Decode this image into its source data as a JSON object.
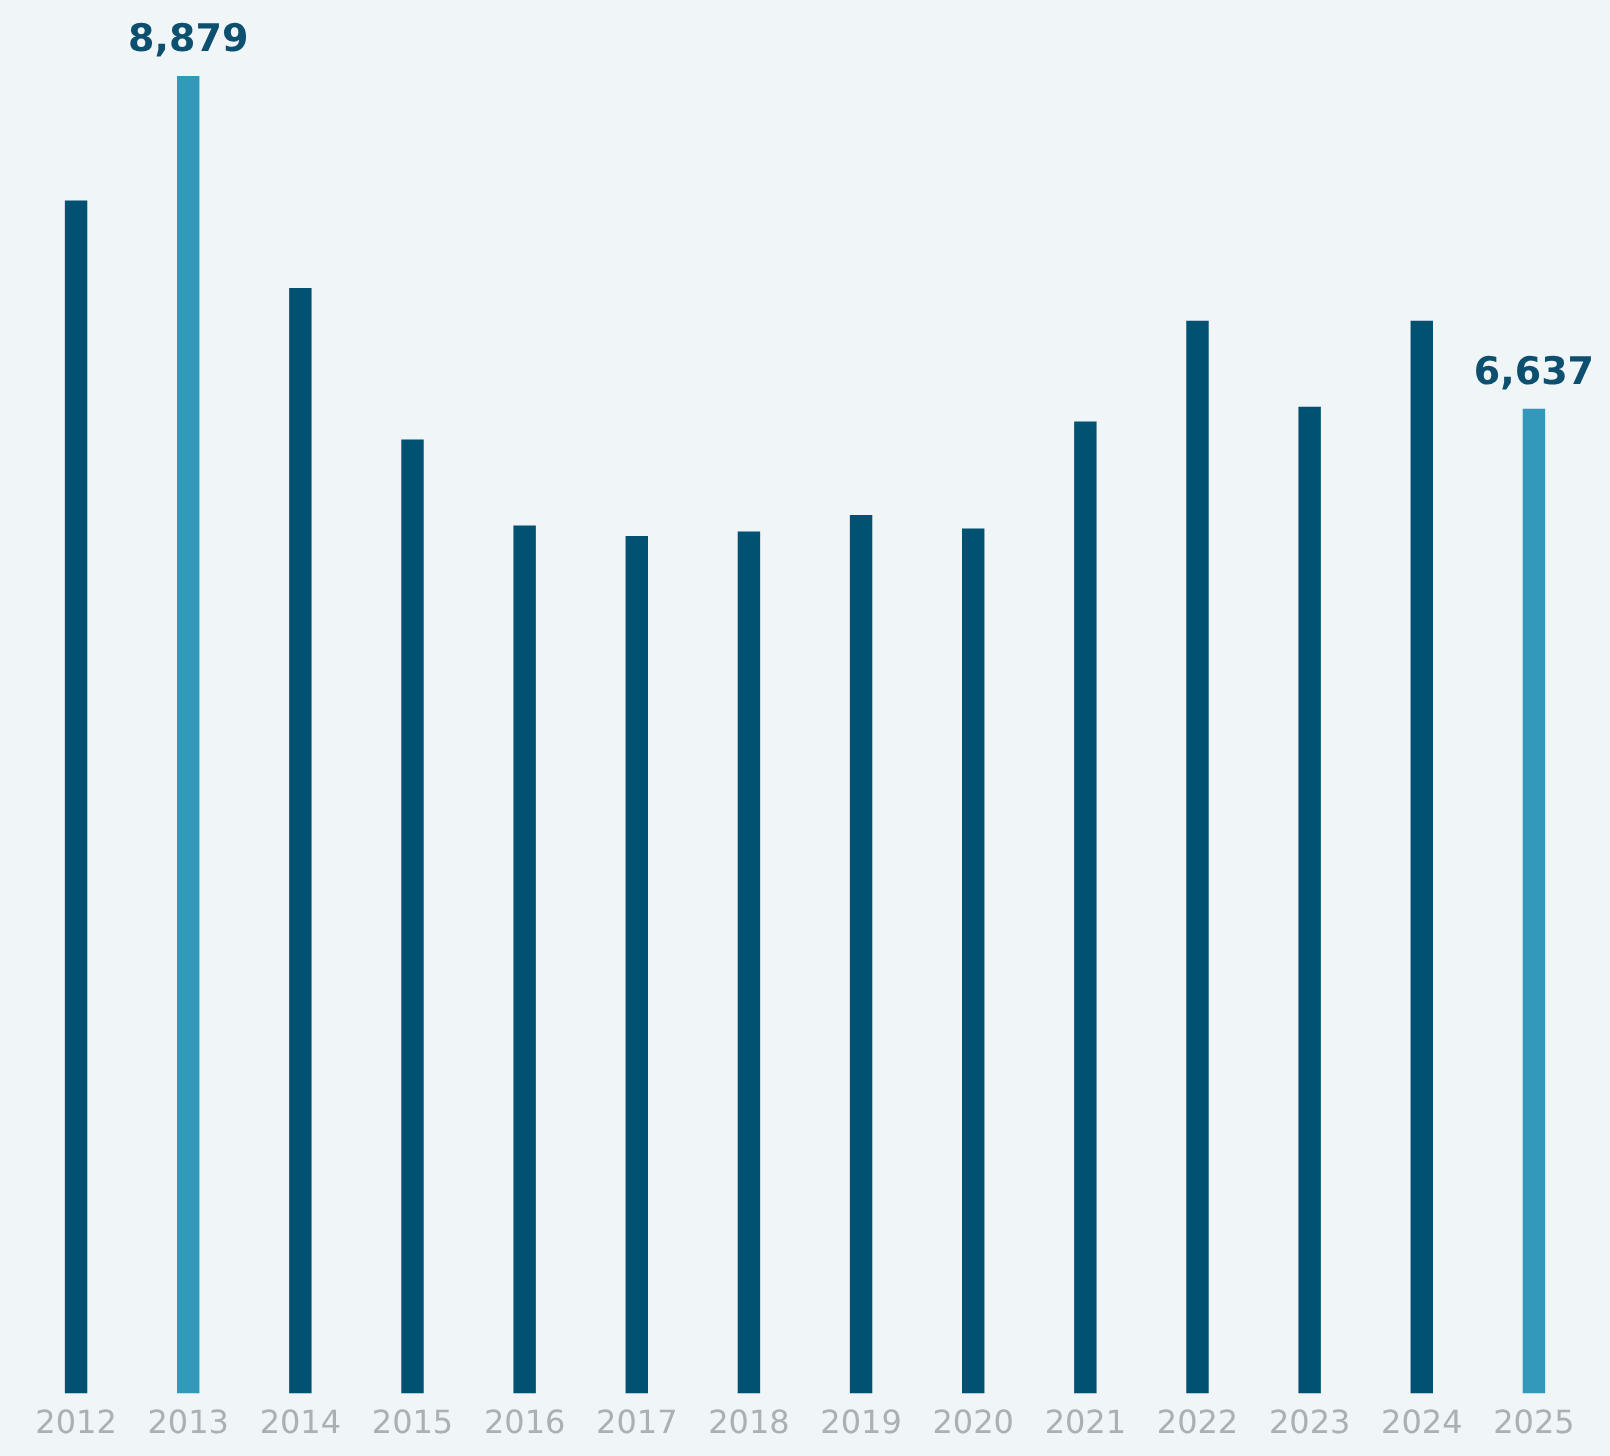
{
  "chart_data": {
    "type": "bar",
    "categories": [
      "2012",
      "2013",
      "2014",
      "2015",
      "2016",
      "2017",
      "2018",
      "2019",
      "2020",
      "2021",
      "2022",
      "2023",
      "2024",
      "2025"
    ],
    "values": [
      8040,
      8879,
      7450,
      6430,
      5850,
      5780,
      5810,
      5920,
      5830,
      6550,
      7230,
      6650,
      7230,
      6637
    ],
    "colors": [
      "#005172",
      "#3399bb",
      "#005172",
      "#005172",
      "#005172",
      "#005172",
      "#005172",
      "#005172",
      "#005172",
      "#005172",
      "#005172",
      "#005172",
      "#005172",
      "#3399bb"
    ],
    "value_labels": [
      null,
      "8,879",
      null,
      null,
      null,
      null,
      null,
      null,
      null,
      null,
      null,
      null,
      null,
      "6,637"
    ],
    "grid": false,
    "legend": false
  }
}
